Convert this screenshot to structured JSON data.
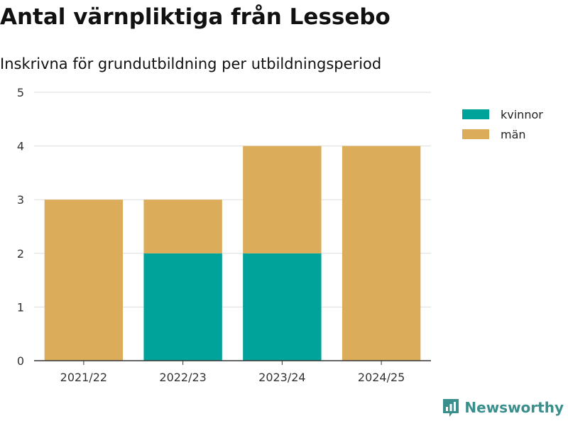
{
  "title": "Antal värnpliktiga från Lessebo",
  "subtitle": "Inskrivna för grundutbildning per utbildningsperiod",
  "brand": {
    "name": "Newsworthy",
    "icon": "newsworthy-logo-icon",
    "color": "#3a8f8c"
  },
  "colors": {
    "kvinnor": "#00a39a",
    "man": "#dbad5a",
    "grid": "#dddddd",
    "axis": "#333333"
  },
  "chart_data": {
    "type": "bar",
    "stacked": true,
    "categories": [
      "2021/22",
      "2022/23",
      "2023/24",
      "2024/25"
    ],
    "series": [
      {
        "name": "kvinnor",
        "values": [
          0,
          2,
          2,
          0
        ],
        "color": "#00a39a"
      },
      {
        "name": "män",
        "values": [
          3,
          1,
          2,
          4
        ],
        "color": "#dbad5a"
      }
    ],
    "ylim": [
      0,
      5
    ],
    "yticks": [
      0,
      1,
      2,
      3,
      4,
      5
    ],
    "xlabel": "",
    "ylabel": "",
    "grid": true,
    "legend": "top-right"
  }
}
